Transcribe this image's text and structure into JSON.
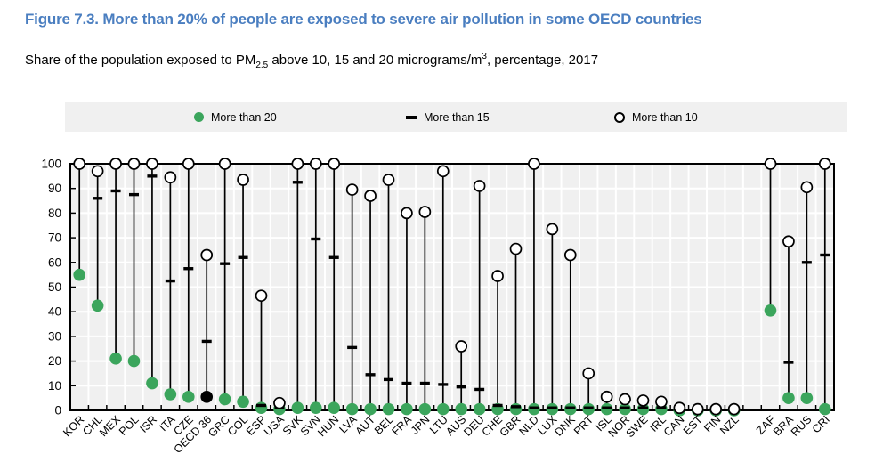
{
  "figure": {
    "title": "Figure 7.3. More than 20% of people are exposed to severe air pollution in some OECD countries",
    "subtitle": {
      "t1": "Share of the population exposed to PM",
      "sub": "2.5",
      "t2": " above 10, 15 and 20 micrograms/m",
      "sup": "3",
      "t3": ", percentage, 2017"
    }
  },
  "legend": {
    "items": [
      {
        "label": "More than 20",
        "marker": "filled-circle",
        "color": "#3ba55c"
      },
      {
        "label": "More than 15",
        "marker": "dash",
        "color": "#000000"
      },
      {
        "label": "More than 10",
        "marker": "open-circle",
        "color": "#000000"
      }
    ]
  },
  "chart_data": {
    "type": "scatter",
    "variant": "lollipop",
    "title": "Figure 7.3. More than 20% of people are exposed to severe air pollution in some OECD countries",
    "xlabel": "",
    "ylabel": "",
    "ylim": [
      0,
      100
    ],
    "ytick_step": 10,
    "grid": true,
    "legend_position": "top",
    "gap_after_category": "NZL",
    "highlight_category": "OECD 36",
    "highlight_color": "#000000",
    "colors": {
      "plot_bg": "#f0f0f0",
      "grid": "#ffffff",
      "axis": "#000000"
    },
    "categories": [
      "KOR",
      "CHL",
      "MEX",
      "POL",
      "ISR",
      "ITA",
      "CZE",
      "OECD 36",
      "GRC",
      "COL",
      "ESP",
      "USA",
      "SVK",
      "SVN",
      "HUN",
      "LVA",
      "AUT",
      "BEL",
      "FRA",
      "JPN",
      "LTU",
      "AUS",
      "DEU",
      "CHE",
      "GBR",
      "NLD",
      "LUX",
      "DNK",
      "PRT",
      "ISL",
      "NOR",
      "SWE",
      "IRL",
      "CAN",
      "EST",
      "FIN",
      "NZL",
      "ZAF",
      "BRA",
      "RUS",
      "CRI"
    ],
    "series": [
      {
        "name": "More than 20",
        "marker": "filled-circle",
        "color": "#3ba55c",
        "values": [
          55,
          42.5,
          21,
          20,
          11,
          6.5,
          5.5,
          5.5,
          4.5,
          3.5,
          1,
          0.5,
          1,
          1,
          1,
          0.5,
          0.5,
          0.5,
          0.5,
          0.5,
          0.5,
          0.5,
          0.5,
          0.5,
          0.5,
          0.5,
          0.5,
          0.5,
          0.5,
          0.5,
          0.5,
          0.5,
          0.5,
          0,
          0,
          0,
          0,
          40.5,
          5,
          5,
          0.5
        ]
      },
      {
        "name": "More than 15",
        "marker": "dash",
        "color": "#000000",
        "values": [
          100,
          86,
          89,
          87.5,
          95,
          52.5,
          57.5,
          28,
          59.5,
          62,
          2,
          1,
          92.5,
          69.5,
          62,
          25.5,
          14.5,
          12.5,
          11,
          11,
          10.5,
          9.5,
          8.5,
          2,
          1.5,
          1,
          1,
          1,
          1,
          1,
          1,
          1,
          1,
          0,
          0,
          0,
          0,
          100,
          19.5,
          60,
          63
        ]
      },
      {
        "name": "More than 10",
        "marker": "open-circle",
        "color": "#000000",
        "values": [
          100,
          97,
          100,
          100,
          100,
          94.5,
          100,
          63,
          100,
          93.5,
          46.5,
          3,
          100,
          100,
          100,
          89.5,
          87,
          93.5,
          80,
          80.5,
          97,
          26,
          91,
          54.5,
          65.5,
          100,
          73.5,
          63,
          15,
          5.5,
          4.5,
          4,
          3.5,
          1,
          0.5,
          0.5,
          0.5,
          100,
          68.5,
          90.5,
          100
        ]
      }
    ]
  }
}
